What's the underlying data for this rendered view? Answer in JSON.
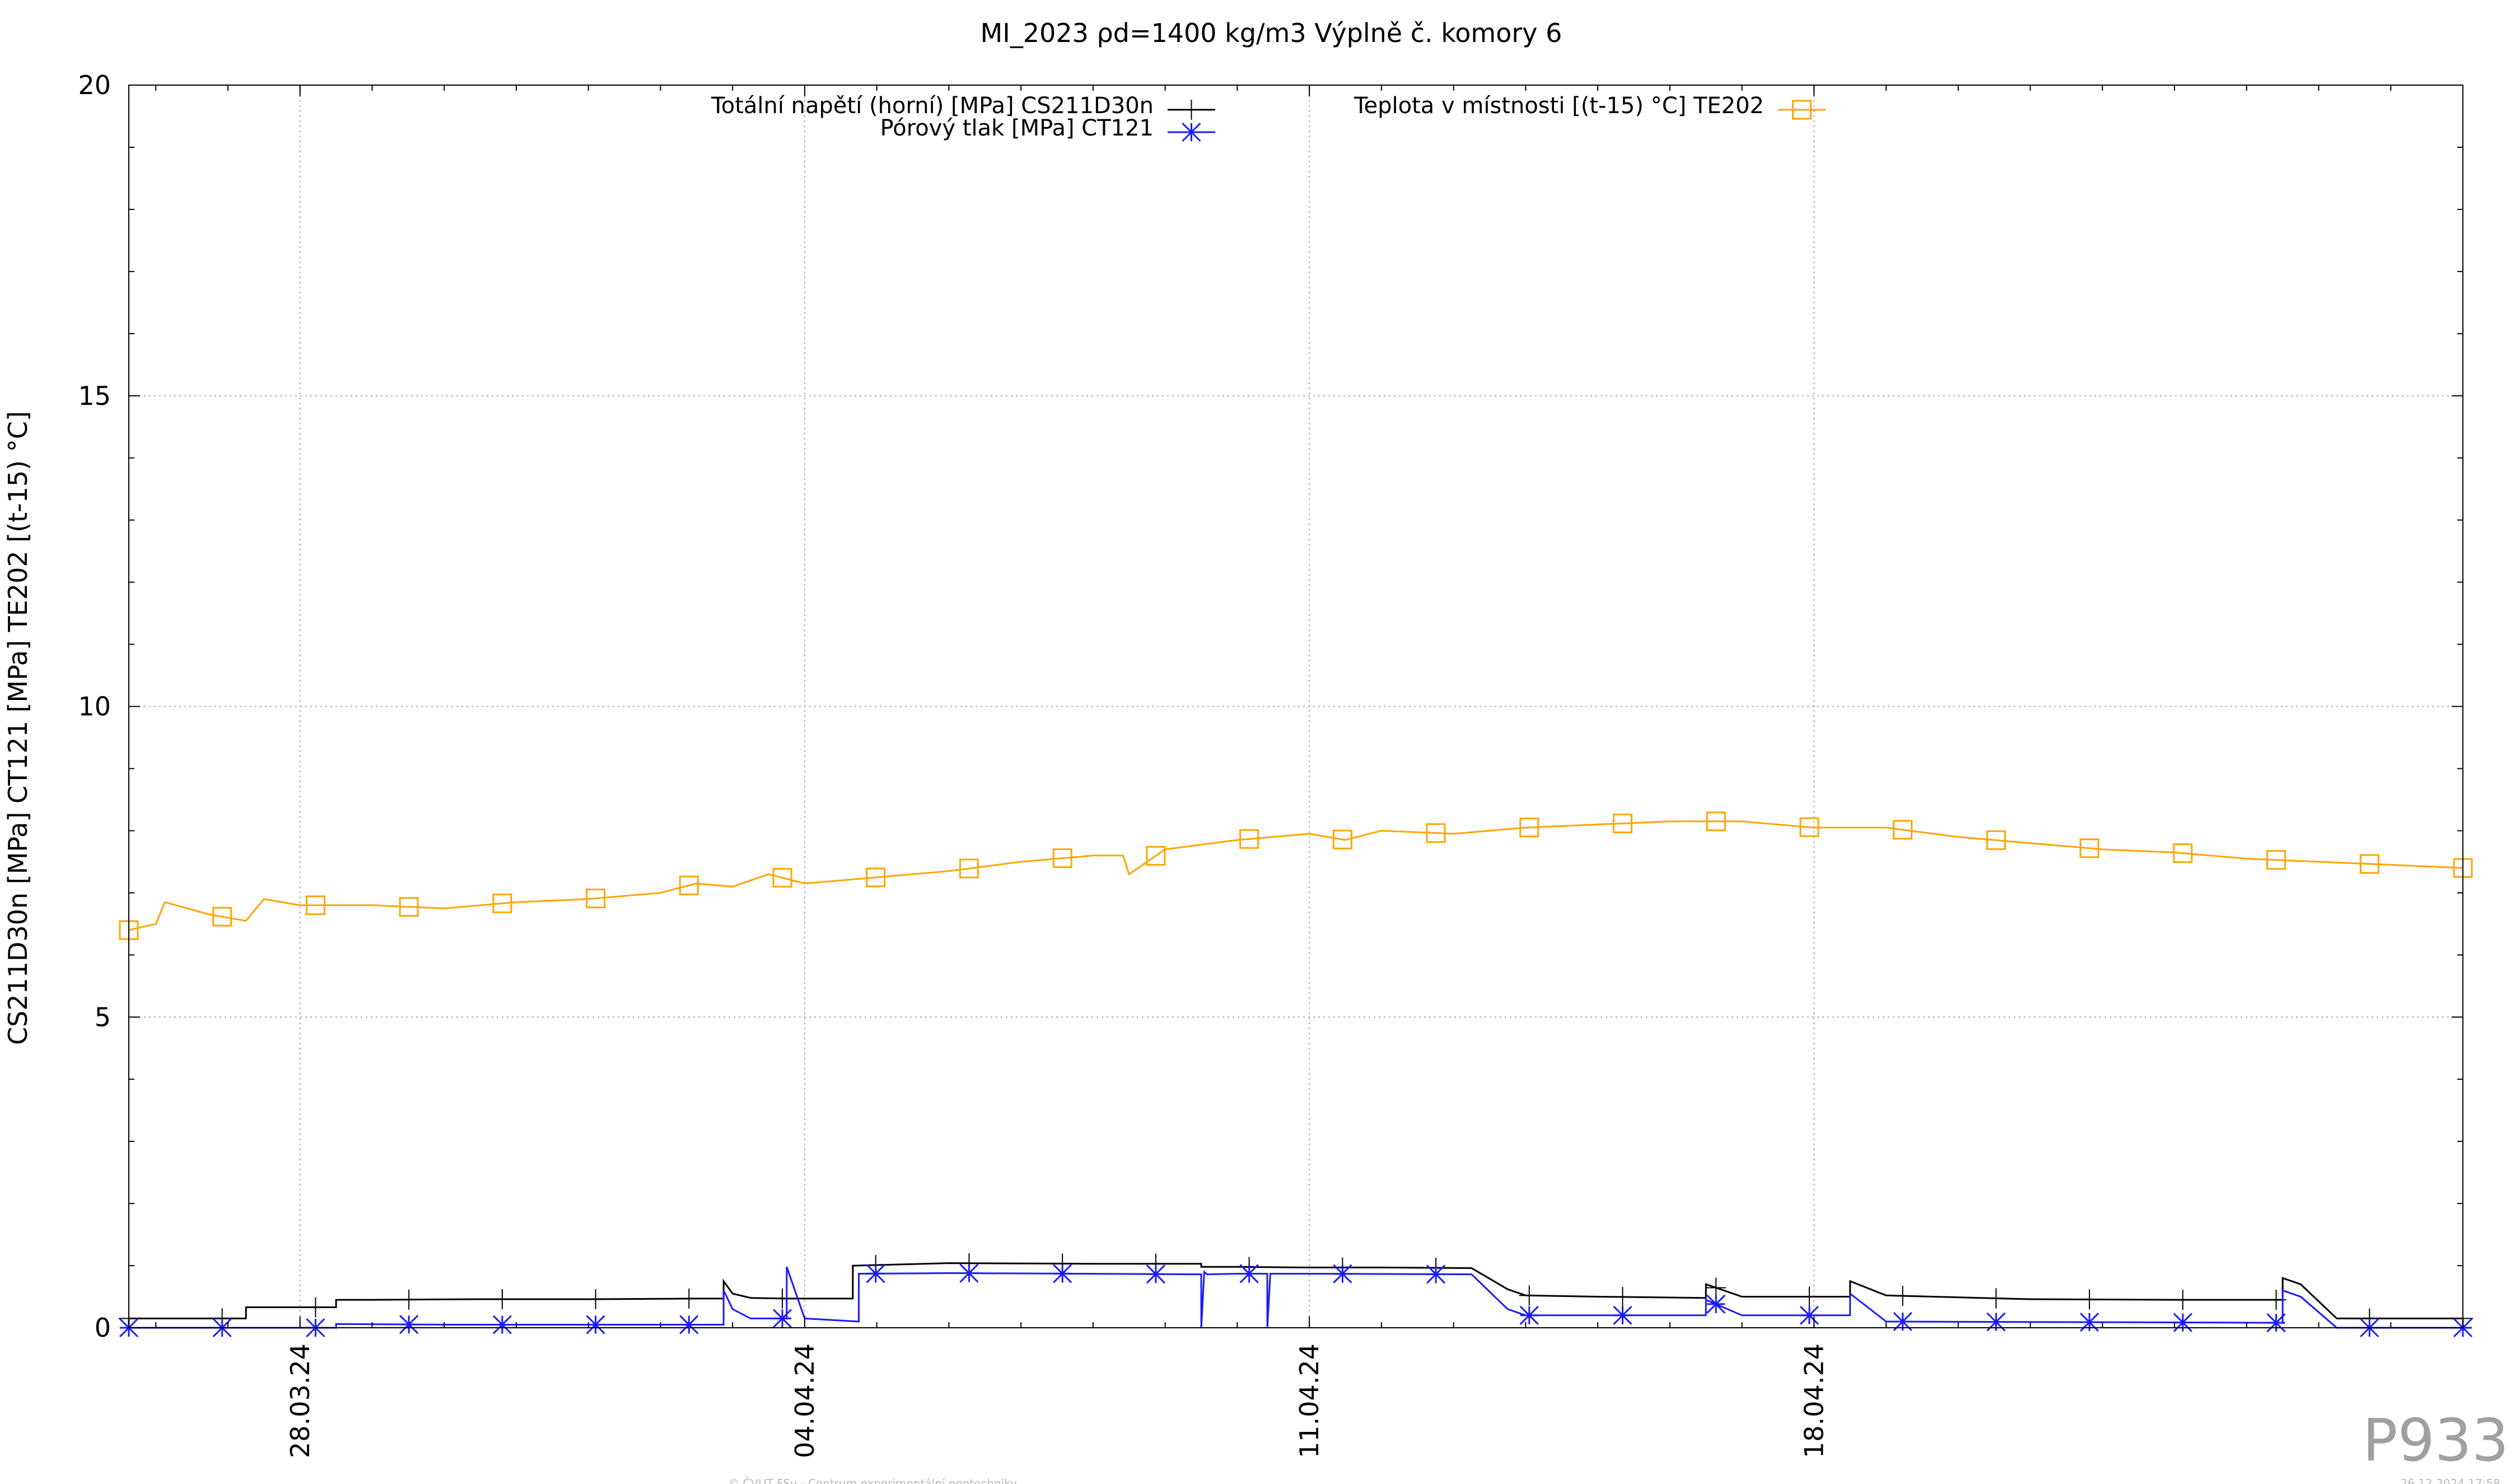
{
  "chart_data": {
    "type": "line",
    "title": "MI_2023 ρd=1400 kg/m3 Výplně č. komory 6",
    "ylabel": "CS211D30n [MPa] CT121 [MPa] TE202 [(t-15) °C]",
    "xlabel": "",
    "ylim": [
      0,
      20
    ],
    "yticks": [
      "0",
      "5",
      "10",
      "15",
      "20"
    ],
    "xlim": [
      "2024-03-25T15:00",
      "2024-04-27T00:00"
    ],
    "xticks": [
      {
        "date": "2024-03-28",
        "label": "28.03.24"
      },
      {
        "date": "2024-04-04",
        "label": "04.04.24"
      },
      {
        "date": "2024-04-11",
        "label": "11.04.24"
      },
      {
        "date": "2024-04-18",
        "label": "18.04.24"
      }
    ],
    "grid": true,
    "legend_placement": "top",
    "series": [
      {
        "name": "Totální napětí (horní) [MPa] CS211D30n",
        "color": "#000000",
        "marker": "plus",
        "x": [
          "2024-03-25T15:00",
          "2024-03-27T06:00",
          "2024-03-27T06:01",
          "2024-03-28T12:00",
          "2024-03-28T12:01",
          "2024-03-29T00:00",
          "2024-03-30T12:00",
          "2024-04-01T00:00",
          "2024-04-02T12:00",
          "2024-04-02T21:00",
          "2024-04-02T21:01",
          "2024-04-03T00:00",
          "2024-04-03T06:00",
          "2024-04-03T18:00",
          "2024-04-04T00:00",
          "2024-04-04T16:00",
          "2024-04-04T16:01",
          "2024-04-06T00:00",
          "2024-04-08T00:00",
          "2024-04-09T12:00",
          "2024-04-09T12:01",
          "2024-04-10T00:00",
          "2024-04-11T00:00",
          "2024-04-12T00:00",
          "2024-04-13T06:00",
          "2024-04-13T18:00",
          "2024-04-14T00:00",
          "2024-04-15T00:00",
          "2024-04-16T12:00",
          "2024-04-16T12:01",
          "2024-04-17T00:00",
          "2024-04-18T12:00",
          "2024-04-18T12:01",
          "2024-04-19T00:00",
          "2024-04-21T00:00",
          "2024-04-23T00:00",
          "2024-04-24T12:00",
          "2024-04-24T12:01",
          "2024-04-24T18:00",
          "2024-04-25T06:00",
          "2024-04-25T06:01",
          "2024-04-27T00:00"
        ],
        "values": [
          0.15,
          0.15,
          0.33,
          0.33,
          0.45,
          0.45,
          0.46,
          0.46,
          0.47,
          0.47,
          0.75,
          0.55,
          0.48,
          0.47,
          0.47,
          0.47,
          1.0,
          1.04,
          1.03,
          1.03,
          0.98,
          0.98,
          0.97,
          0.97,
          0.96,
          0.62,
          0.52,
          0.5,
          0.48,
          0.7,
          0.5,
          0.5,
          0.75,
          0.52,
          0.46,
          0.45,
          0.45,
          0.8,
          0.7,
          0.15,
          0.15,
          0.15
        ]
      },
      {
        "name": "Pórový tlak [MPa] CT121",
        "color": "#1a1aff",
        "marker": "star",
        "x": [
          "2024-03-25T15:00",
          "2024-03-27T12:00",
          "2024-03-28T12:00",
          "2024-03-28T12:01",
          "2024-03-30T00:00",
          "2024-04-02T21:00",
          "2024-04-02T21:01",
          "2024-04-03T00:00",
          "2024-04-03T06:00",
          "2024-04-03T18:00",
          "2024-04-03T18:01",
          "2024-04-04T00:00",
          "2024-04-04T18:00",
          "2024-04-04T18:01",
          "2024-04-06T00:00",
          "2024-04-09T12:00",
          "2024-04-09T12:01",
          "2024-04-09T13:00",
          "2024-04-09T14:00",
          "2024-04-10T00:00",
          "2024-04-10T10:00",
          "2024-04-10T10:01",
          "2024-04-10T11:00",
          "2024-04-11T00:00",
          "2024-04-13T06:00",
          "2024-04-13T18:00",
          "2024-04-14T00:00",
          "2024-04-16T12:00",
          "2024-04-16T12:01",
          "2024-04-17T00:00",
          "2024-04-18T12:00",
          "2024-04-18T12:01",
          "2024-04-19T00:00",
          "2024-04-24T12:00",
          "2024-04-24T12:01",
          "2024-04-24T18:00",
          "2024-04-25T06:00",
          "2024-04-25T06:01",
          "2024-04-27T00:00"
        ],
        "values": [
          0.0,
          0.0,
          0.0,
          0.06,
          0.05,
          0.05,
          0.6,
          0.3,
          0.15,
          0.15,
          0.98,
          0.15,
          0.1,
          0.87,
          0.88,
          0.86,
          0.0,
          0.9,
          0.86,
          0.87,
          0.87,
          0.0,
          0.87,
          0.87,
          0.86,
          0.3,
          0.2,
          0.2,
          0.45,
          0.2,
          0.2,
          0.55,
          0.1,
          0.08,
          0.6,
          0.5,
          0.0,
          0.0,
          0.0
        ]
      },
      {
        "name": "Teplota v místnosti [(t-15) °C] TE202",
        "color": "#ffa500",
        "marker": "square",
        "x": [
          "2024-03-25T15:00",
          "2024-03-26T00:00",
          "2024-03-26T03:00",
          "2024-03-26T18:00",
          "2024-03-27T06:00",
          "2024-03-27T12:00",
          "2024-03-28T00:00",
          "2024-03-29T00:00",
          "2024-03-30T00:00",
          "2024-03-31T00:00",
          "2024-04-01T00:00",
          "2024-04-02T00:00",
          "2024-04-02T12:00",
          "2024-04-03T00:00",
          "2024-04-03T12:00",
          "2024-04-04T00:00",
          "2024-04-05T00:00",
          "2024-04-06T00:00",
          "2024-04-07T00:00",
          "2024-04-08T00:00",
          "2024-04-08T10:00",
          "2024-04-08T12:00",
          "2024-04-09T00:00",
          "2024-04-10T00:00",
          "2024-04-11T00:00",
          "2024-04-11T12:00",
          "2024-04-12T00:00",
          "2024-04-13T00:00",
          "2024-04-14T00:00",
          "2024-04-15T00:00",
          "2024-04-16T00:00",
          "2024-04-17T00:00",
          "2024-04-18T00:00",
          "2024-04-19T00:00",
          "2024-04-20T00:00",
          "2024-04-21T00:00",
          "2024-04-22T00:00",
          "2024-04-23T00:00",
          "2024-04-24T00:00",
          "2024-04-25T00:00",
          "2024-04-26T00:00",
          "2024-04-27T00:00"
        ],
        "values": [
          6.4,
          6.5,
          6.85,
          6.65,
          6.55,
          6.9,
          6.8,
          6.8,
          6.75,
          6.85,
          6.9,
          7.0,
          7.15,
          7.1,
          7.3,
          7.15,
          7.25,
          7.35,
          7.5,
          7.6,
          7.6,
          7.3,
          7.7,
          7.85,
          7.95,
          7.85,
          8.0,
          7.95,
          8.05,
          8.1,
          8.15,
          8.15,
          8.05,
          8.05,
          7.9,
          7.8,
          7.7,
          7.65,
          7.55,
          7.5,
          7.45,
          7.4
        ]
      }
    ]
  },
  "watermark": "P933",
  "footer": {
    "credit": "© ČVUT FSv - Centrum experimentální geotechniky",
    "timestamp": "26.12.2024 17:58"
  }
}
